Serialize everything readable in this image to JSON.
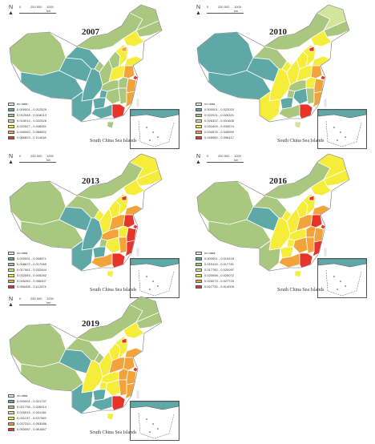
{
  "north_label": "N",
  "scale": {
    "left": "0",
    "mid": "250 500",
    "right": "1000 km"
  },
  "no_data_label": "no data",
  "inset_label": "South China Sea Islands",
  "colors": {
    "teal": "#5fa8a8",
    "sage": "#a9c77f",
    "lightgreen": "#d4e49d",
    "yellow": "#f6ec3a",
    "orange": "#f2a33a",
    "red": "#e8332a",
    "nodata": "#e6e6e6"
  },
  "panels": [
    {
      "year": "2007",
      "legend": [
        "0.000001 - 0.012529",
        "0.012548 - 0.018013",
        "0.018014 - 0.022526",
        "0.022527 - 0.046061",
        "0.046062 - 0.066822",
        "0.066823 - 0.114018"
      ]
    },
    {
      "year": "2010",
      "legend": [
        "0.000001 - 0.022020",
        "0.022021 - 0.026321",
        "0.026322 - 0.031608",
        "0.031609 - 0.034574",
        "0.034575 - 0.045959",
        "0.045960 - 0.096417"
      ]
    },
    {
      "year": "2013",
      "legend": [
        "0.000001 - 0.008871",
        "0.008872 - 0.017060",
        "0.017061 - 0.032844",
        "0.032845 - 0.045282",
        "0.045283 - 0.056407",
        "0.056408 - 0.112474"
      ]
    },
    {
      "year": "2016",
      "legend": [
        "0.000001 - 0.010418",
        "0.010419 - 0.017781",
        "0.017782 - 0.020097",
        "0.020098 - 0.025072",
        "0.025073 - 0.027729",
        "0.027730 - 0.014005"
      ]
    },
    {
      "year": "2019",
      "legend": [
        "0.000001 - 0.021737",
        "0.021738 - 0.026914",
        "0.026915 - 0.031136",
        "0.031137 - 0.037309",
        "0.037310 - 0.053086",
        "0.053087 - 0.061857"
      ]
    }
  ]
}
